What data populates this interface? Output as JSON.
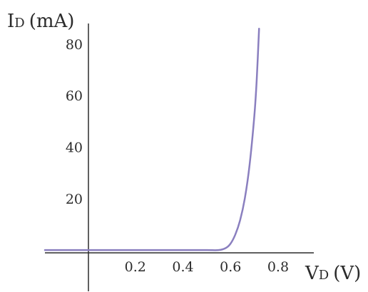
{
  "chart_data": {
    "type": "line",
    "title": "",
    "ylabel": {
      "main": "I",
      "sub": "D",
      "unit": "(mA)"
    },
    "xlabel": {
      "main": "V",
      "sub": "D",
      "unit": "(V)"
    },
    "xlim": [
      -0.18,
      0.95
    ],
    "ylim": [
      -16,
      88
    ],
    "x_ticks": [
      {
        "value": 0.2,
        "label": "0.2"
      },
      {
        "value": 0.4,
        "label": "0.4"
      },
      {
        "value": 0.6,
        "label": "0.6"
      },
      {
        "value": 0.8,
        "label": "0.8"
      }
    ],
    "y_ticks": [
      {
        "value": 20,
        "label": "20"
      },
      {
        "value": 40,
        "label": "40"
      },
      {
        "value": 60,
        "label": "60"
      },
      {
        "value": 80,
        "label": "80"
      }
    ],
    "grid": false,
    "series": [
      {
        "color": "#8a7fbf",
        "x": [
          -0.18,
          0.0,
          0.2,
          0.4,
          0.5,
          0.55,
          0.58,
          0.6,
          0.62,
          0.64,
          0.66,
          0.68,
          0.7,
          0.71,
          0.72
        ],
        "y": [
          0,
          0,
          0,
          0,
          0,
          0,
          0.8,
          2.5,
          6,
          11.5,
          20,
          33,
          52,
          66,
          86
        ]
      }
    ]
  }
}
